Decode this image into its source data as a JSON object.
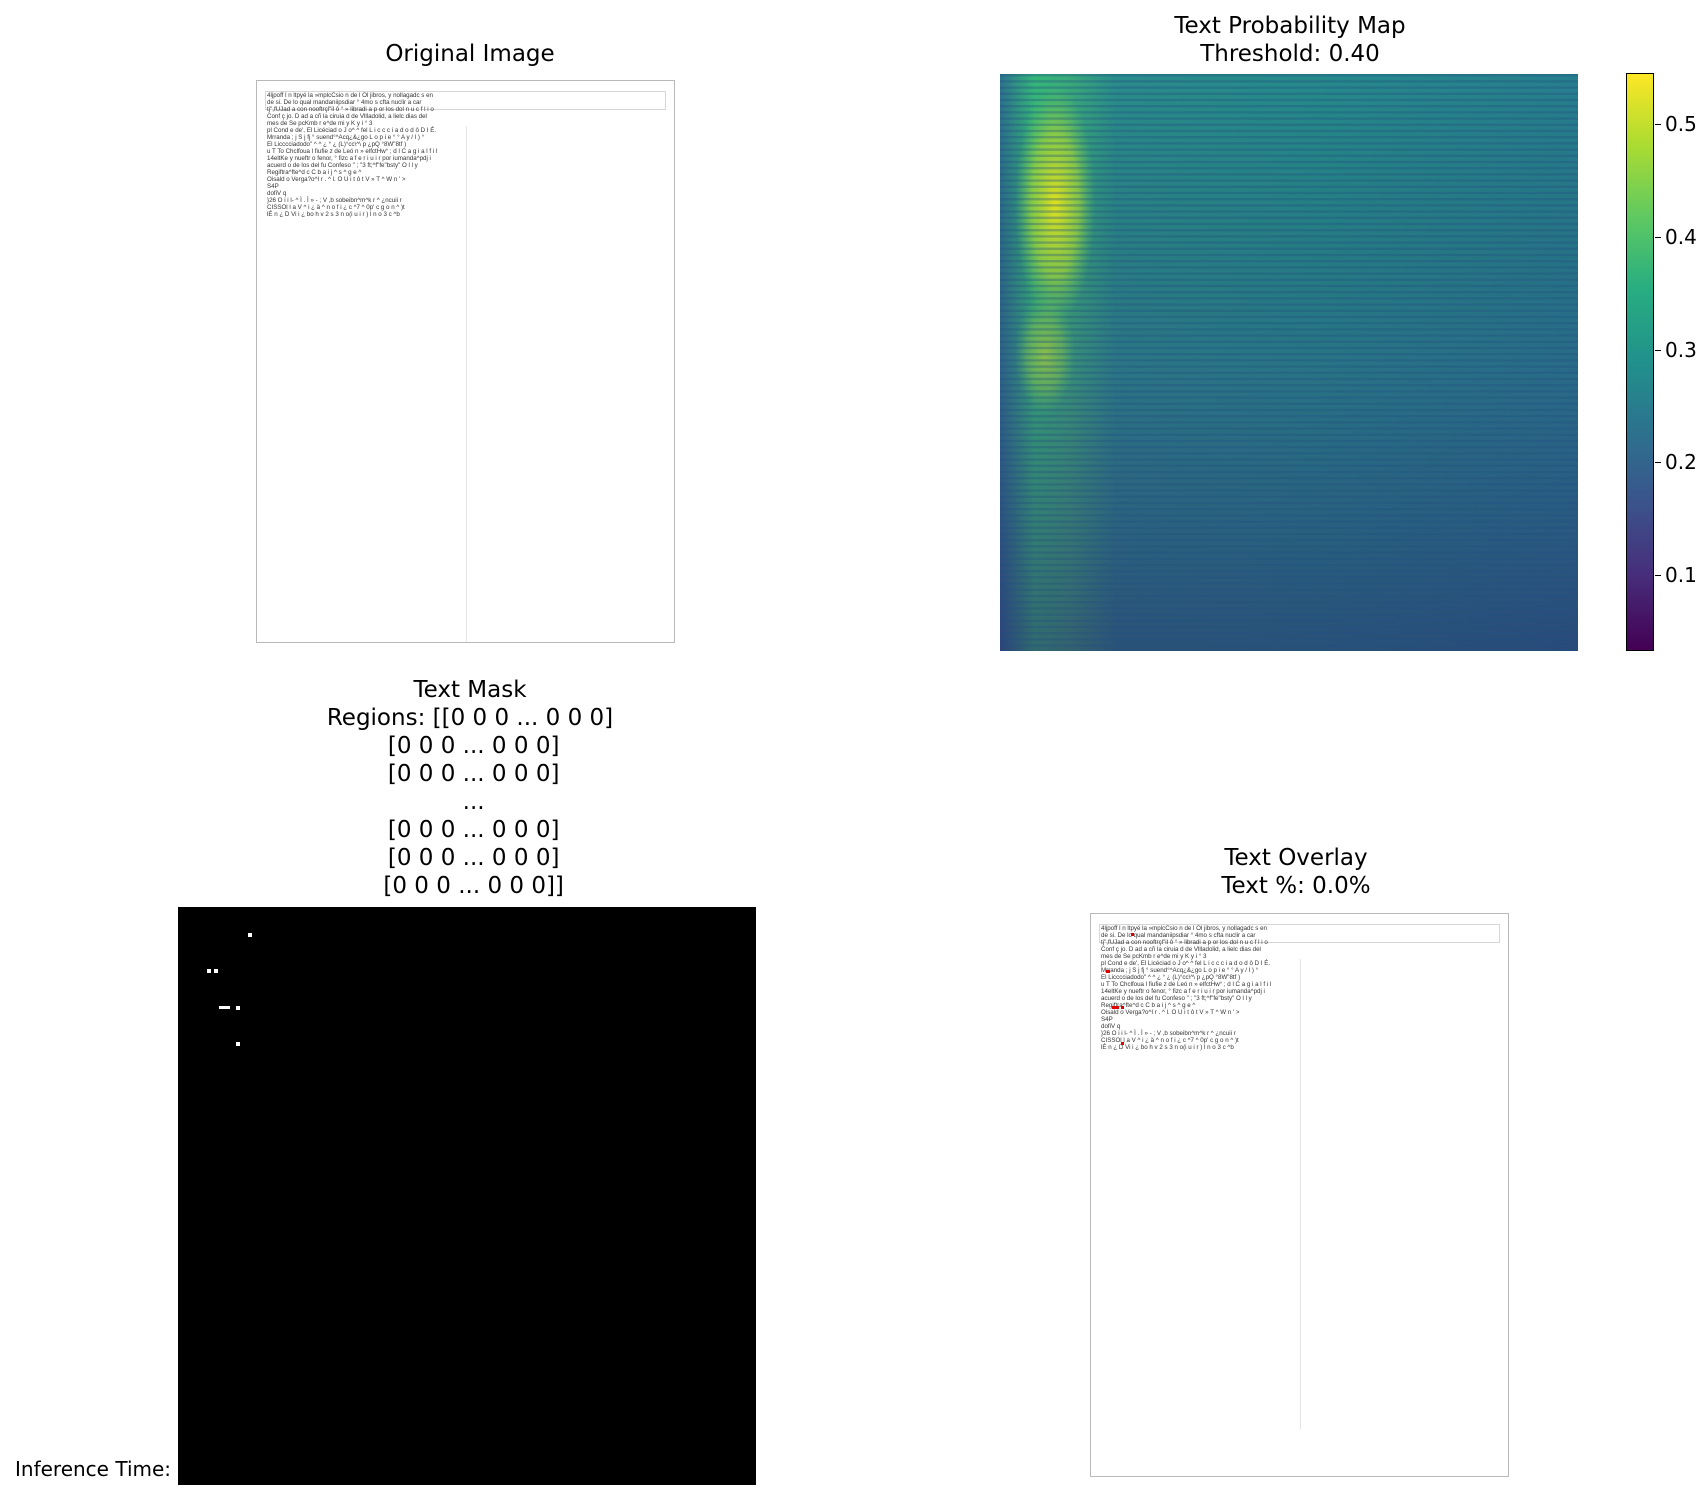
{
  "panels": {
    "original": {
      "title": "Original Image"
    },
    "probability": {
      "title": "Text Probability Map\nThreshold: 0.40",
      "colorbar_ticks": [
        "0.5",
        "0.4",
        "0.3",
        "0.2",
        "0.1"
      ]
    },
    "mask": {
      "title": "Text Mask\nRegions: [[0 0 0 ... 0 0 0]\n [0 0 0 ... 0 0 0]\n [0 0 0 ... 0 0 0]\n ...\n [0 0 0 ... 0 0 0]\n [0 0 0 ... 0 0 0]\n [0 0 0 ... 0 0 0]]"
    },
    "overlay": {
      "title": "Text Overlay\nText %: 0.0%"
    }
  },
  "footer": {
    "inference_label": "Inference Time:"
  },
  "document": {
    "lines": [
      "4ljpoff l n ltpyé  la »mplcCsio n de l Ol jibros, y nollagadc s en",
      "de si. De lo qual mandaniipsdiar ° 4mo s cfta nuclir a car",
      "tj\",fUJad a con nooftrçl\"il ô ° » libradi a p or los dol n u c f l i o",
      "Conf ç jo. D ad a cñ la ciruia d de Vllladolid, a lielc dias del",
      "mes de Se pcKmb r e^de mi y K y i ° 3",
      "pl Cond e de', El Licéciad o J o^ ^ fel L i c c c i a d o d ô D I É.",
      "Mrranda ; j S j fj ° suend°^Acq¿&¿go L o p i e ° ° A y / l ) °",
      "El Licccciadodo\" ^ ^ ¿ ° ¿ (L)°cc\\^\\ p ¿pQ °8W\"8tf )",
      "u T To Chclfoua l fiufie z de Leó n » elfctHw° ; d l C a g i a l f i l",
      "14eltKe y nueftr o fenor, ° fizc a f e r i u i r por iumanda^pdj i",
      "acuerd o de los del fu Confeso \" ; \"3 ft;^f\"fe\"bsty\"  O l l y",
      "Regiftra^fte^d c C b a i j ^ s ^ g e ^",
      "Oisald o Verga?o^I r . ^ l. O U i t ô t V » T ^ W n ' >",
      "S4P",
      "dofiV q",
      "}26 O i i l- ^ Ì . Ì » - ; V ,b sobeibn^m^k r ^ ¿ncuii r",
      "CISSOl l a V ^ i ¿ ä ^ n o f i ¿ c ^7 ^ 0p' c g o n ^ )t",
      "lÉ n ¿ D Vi i ¿ bo h v 2 s 3 n o(i u i r ) l n o 3 c ^b"
    ]
  },
  "colors": {
    "viridis_low": "#440154",
    "viridis_mid": "#21918c",
    "viridis_high": "#fde725",
    "overlay_mark": "#e00000",
    "mask_bg": "#000000"
  }
}
